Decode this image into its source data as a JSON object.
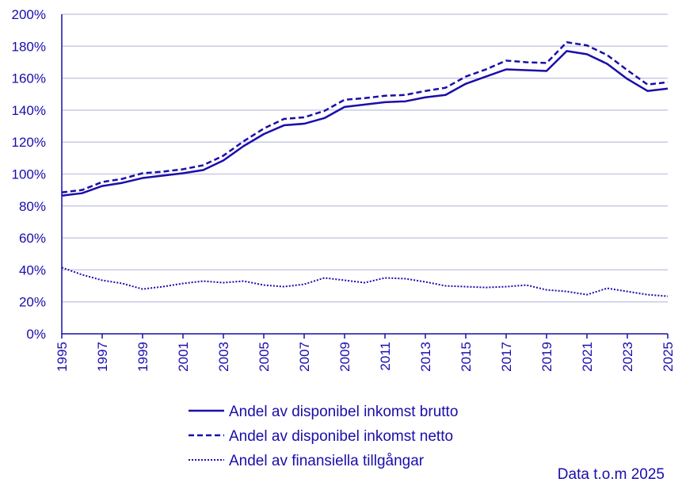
{
  "chart_data": {
    "type": "line",
    "x": [
      1995,
      1996,
      1997,
      1998,
      1999,
      2000,
      2001,
      2002,
      2003,
      2004,
      2005,
      2006,
      2007,
      2008,
      2009,
      2010,
      2011,
      2012,
      2013,
      2014,
      2015,
      2016,
      2017,
      2018,
      2019,
      2020,
      2021,
      2022,
      2023,
      2024,
      2025
    ],
    "x_tick_labels": [
      "1995",
      "1997",
      "1999",
      "2001",
      "2003",
      "2005",
      "2007",
      "2009",
      "2011",
      "2013",
      "2015",
      "2017",
      "2019",
      "2021",
      "2023",
      "2025"
    ],
    "y_tick_labels": [
      "0%",
      "20%",
      "40%",
      "60%",
      "80%",
      "100%",
      "120%",
      "140%",
      "160%",
      "180%",
      "200%"
    ],
    "ylim": [
      0,
      200
    ],
    "xlim": [
      1995,
      2025
    ],
    "grid": true,
    "legend_position": "bottom",
    "colors": {
      "line": "#1a0dab",
      "grid": "#c9c9e6",
      "axis": "#1a0dab"
    },
    "series": [
      {
        "name": "Andel av disponibel inkomst brutto",
        "style": "solid",
        "values": [
          86.5,
          88,
          92.5,
          94.5,
          97.5,
          99,
          100.5,
          102.5,
          108.5,
          117.5,
          125,
          130.5,
          131.5,
          135,
          142,
          143.5,
          145,
          145.5,
          148,
          149.5,
          156.5,
          161,
          165.5,
          165,
          164.5,
          177,
          175,
          169,
          159.5,
          152,
          153.5
        ]
      },
      {
        "name": "Andel av disponibel inkomst netto",
        "style": "dashed",
        "values": [
          88.5,
          90,
          95,
          97,
          100.5,
          101.5,
          103,
          105.5,
          111.5,
          120.5,
          128.5,
          134.5,
          135.5,
          139.5,
          146.5,
          147.5,
          149,
          149.5,
          152,
          154,
          161,
          165.5,
          171,
          170,
          169.5,
          182.5,
          180.5,
          174.5,
          165,
          156,
          157.5
        ]
      },
      {
        "name": "Andel av finansiella tillgångar",
        "style": "dotted",
        "values": [
          41.5,
          37,
          33.5,
          31.5,
          28,
          29.5,
          31.5,
          33,
          32,
          33,
          30.5,
          29.5,
          31,
          35,
          33.5,
          32,
          35,
          34.5,
          32.5,
          30,
          29.5,
          29,
          29.5,
          30.5,
          27.5,
          26.5,
          24.5,
          28.5,
          26.5,
          24.5,
          23.5
        ]
      }
    ],
    "footnote": "Data t.o.m 2025"
  }
}
